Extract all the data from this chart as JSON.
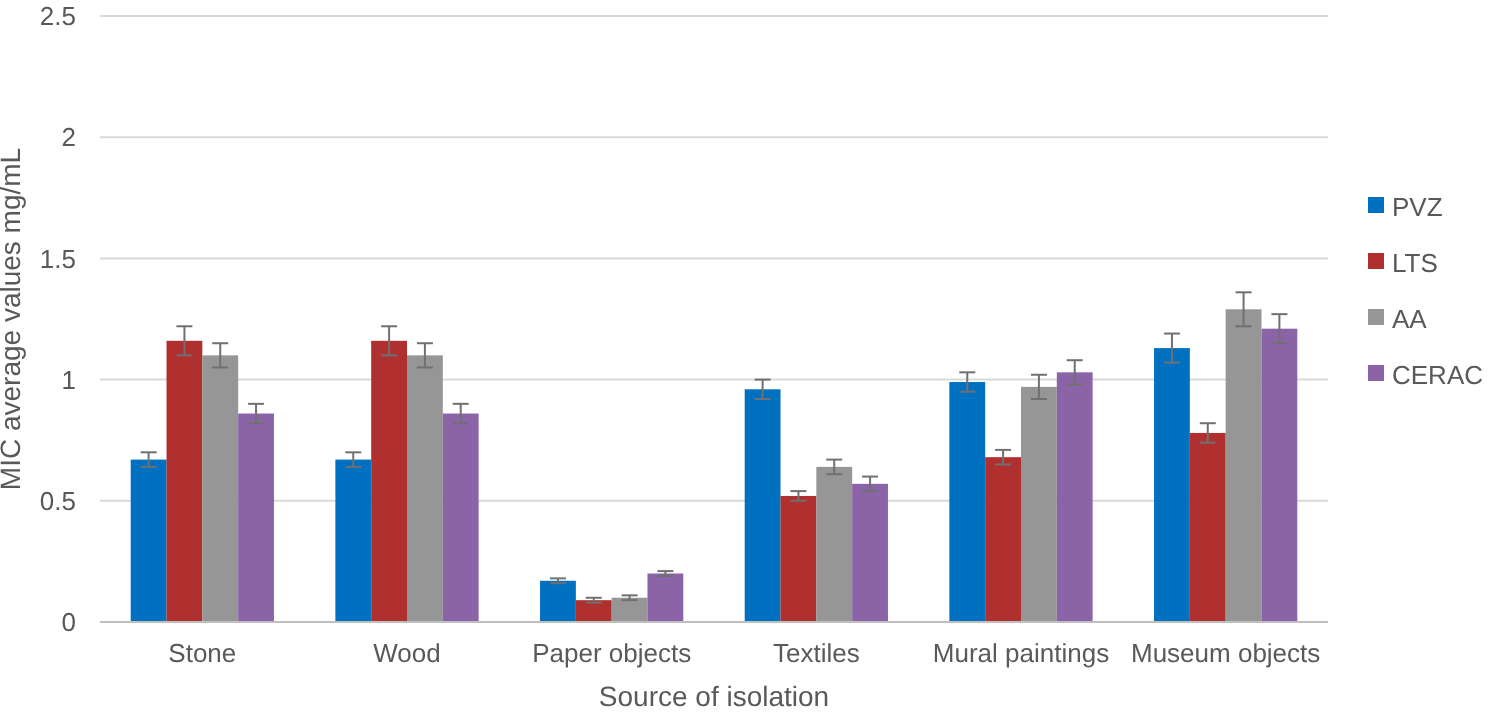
{
  "chart_data": {
    "type": "bar",
    "xlabel": "Source of isolation",
    "ylabel": "MIC average values mg/mL",
    "categories": [
      "Stone",
      "Wood",
      "Paper objects",
      "Textiles",
      "Mural paintings",
      "Museum objects"
    ],
    "series": [
      {
        "name": "PVZ",
        "color": "#0070c0",
        "values": [
          0.67,
          0.67,
          0.17,
          0.96,
          0.99,
          1.13
        ],
        "errors": [
          0.03,
          0.03,
          0.01,
          0.04,
          0.04,
          0.06
        ]
      },
      {
        "name": "LTS",
        "color": "#b03030",
        "values": [
          1.16,
          1.16,
          0.09,
          0.52,
          0.68,
          0.78
        ],
        "errors": [
          0.06,
          0.06,
          0.01,
          0.02,
          0.03,
          0.04
        ]
      },
      {
        "name": "AA",
        "color": "#969696",
        "values": [
          1.1,
          1.1,
          0.1,
          0.64,
          0.97,
          1.29
        ],
        "errors": [
          0.05,
          0.05,
          0.01,
          0.03,
          0.05,
          0.07
        ]
      },
      {
        "name": "CERAC",
        "color": "#8b64a8",
        "values": [
          0.86,
          0.86,
          0.2,
          0.57,
          1.03,
          1.21
        ],
        "errors": [
          0.04,
          0.04,
          0.01,
          0.03,
          0.05,
          0.06
        ]
      }
    ],
    "ylim": [
      0,
      2.5
    ],
    "yticks": [
      0,
      0.5,
      1,
      1.5,
      2,
      2.5
    ],
    "grid": "y",
    "legend": "right"
  }
}
